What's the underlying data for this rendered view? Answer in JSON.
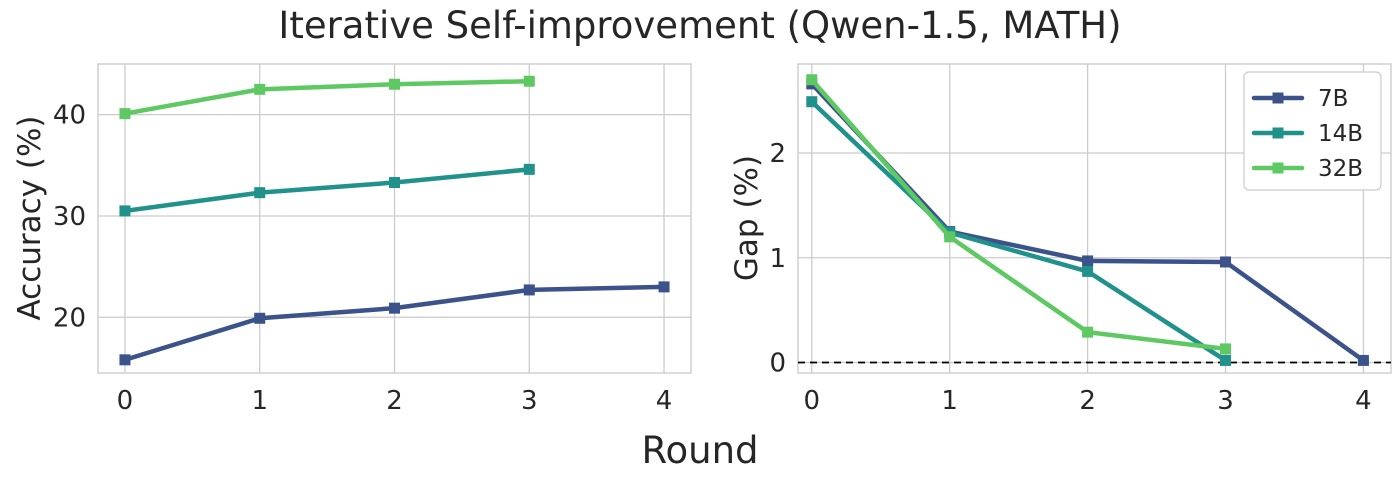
{
  "figure": {
    "title": "Iterative Self-improvement (Qwen-1.5, MATH)",
    "xlabel": "Round"
  },
  "colors": {
    "7B": "#3b528b",
    "14B": "#21918c",
    "32B": "#5ec962",
    "grid": "#cccccc",
    "axes": "#cccccc",
    "baseline": "#000000"
  },
  "chart_data": [
    {
      "type": "line",
      "ylabel": "Accuracy (%)",
      "x_ticks": [
        "0",
        "1",
        "2",
        "3",
        "4"
      ],
      "y_ticks": [
        "20",
        "30",
        "40"
      ],
      "xlim": [
        -0.2,
        4.2
      ],
      "ylim": [
        14.5,
        45
      ],
      "grid": true,
      "series": [
        {
          "name": "7B",
          "x": [
            0,
            1,
            2,
            3,
            4
          ],
          "y": [
            15.8,
            19.9,
            20.9,
            22.7,
            23.0
          ]
        },
        {
          "name": "14B",
          "x": [
            0,
            1,
            2,
            3
          ],
          "y": [
            30.5,
            32.3,
            33.3,
            34.6
          ]
        },
        {
          "name": "32B",
          "x": [
            0,
            1,
            2,
            3
          ],
          "y": [
            40.1,
            42.5,
            43.0,
            43.3
          ]
        }
      ]
    },
    {
      "type": "line",
      "ylabel": "Gap (%)",
      "x_ticks": [
        "0",
        "1",
        "2",
        "3",
        "4"
      ],
      "y_ticks": [
        "0",
        "1",
        "2"
      ],
      "xlim": [
        -0.1,
        4.2
      ],
      "ylim": [
        -0.1,
        2.85
      ],
      "grid": true,
      "legend": {
        "position": "top-right",
        "entries": [
          "7B",
          "14B",
          "32B"
        ]
      },
      "reference_line": {
        "y": 0,
        "style": "dashed"
      },
      "series": [
        {
          "name": "7B",
          "x": [
            0,
            1,
            2,
            3,
            4
          ],
          "y": [
            2.66,
            1.25,
            0.97,
            0.96,
            0.02
          ]
        },
        {
          "name": "14B",
          "x": [
            0,
            1,
            2,
            3
          ],
          "y": [
            2.49,
            1.24,
            0.87,
            0.02
          ]
        },
        {
          "name": "32B",
          "x": [
            0,
            1,
            2,
            3
          ],
          "y": [
            2.7,
            1.2,
            0.29,
            0.13
          ]
        }
      ]
    }
  ]
}
